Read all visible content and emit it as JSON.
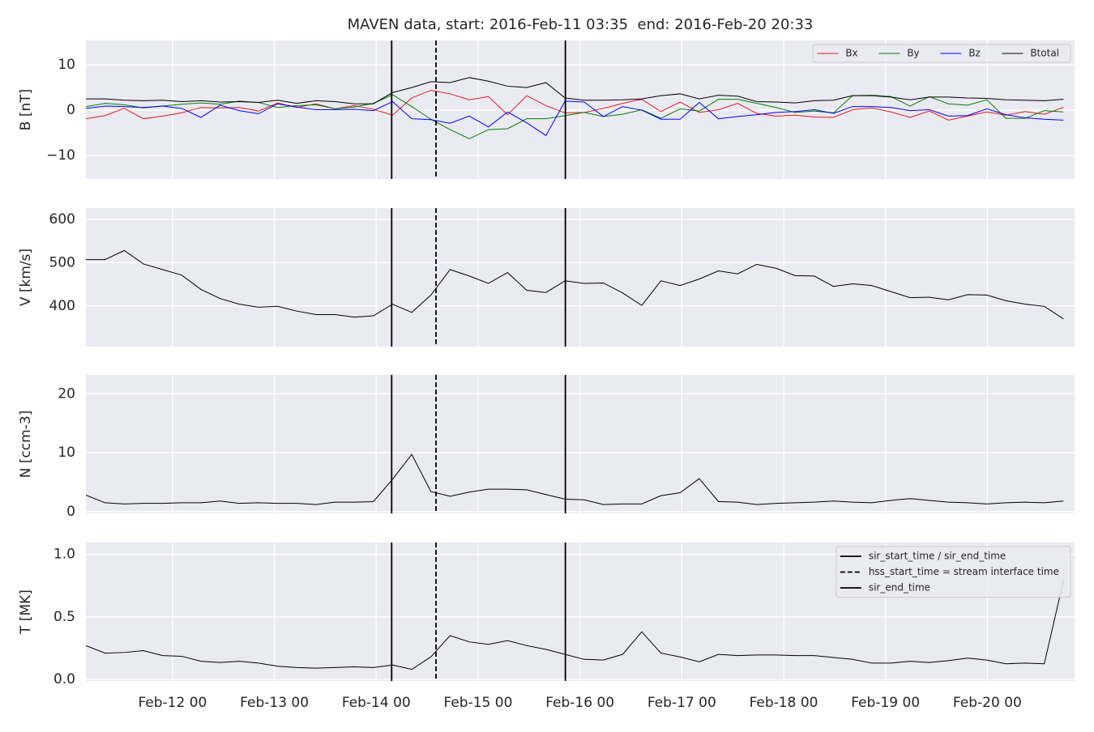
{
  "chart_data": [
    {
      "type": "line",
      "title": "MAVEN data, start: 2016-Feb-11 03:35  end: 2016-Feb-20 20:33",
      "ylabel": "B [nT]",
      "x": [
        "2016-02-11 03:35",
        "2016-02-11 08:06",
        "2016-02-11 12:37",
        "2016-02-11 17:08",
        "2016-02-11 21:39",
        "2016-02-12 02:10",
        "2016-02-12 06:41",
        "2016-02-12 11:12",
        "2016-02-12 15:43",
        "2016-02-12 20:14",
        "2016-02-13 00:45",
        "2016-02-13 05:16",
        "2016-02-13 09:47",
        "2016-02-13 14:18",
        "2016-02-13 18:49",
        "2016-02-13 23:20",
        "2016-02-14 03:51",
        "2016-02-14 08:22",
        "2016-02-14 12:53",
        "2016-02-14 17:24",
        "2016-02-14 21:55",
        "2016-02-15 02:26",
        "2016-02-15 06:57",
        "2016-02-15 11:28",
        "2016-02-15 15:59",
        "2016-02-15 20:30",
        "2016-02-16 01:01",
        "2016-02-16 05:32",
        "2016-02-16 10:03",
        "2016-02-16 14:34",
        "2016-02-16 19:05",
        "2016-02-16 23:36",
        "2016-02-17 04:07",
        "2016-02-17 08:38",
        "2016-02-17 13:09",
        "2016-02-17 17:40",
        "2016-02-17 22:11",
        "2016-02-18 02:42",
        "2016-02-18 07:13",
        "2016-02-18 11:44",
        "2016-02-18 16:15",
        "2016-02-18 20:46",
        "2016-02-19 01:17",
        "2016-02-19 05:48",
        "2016-02-19 10:19",
        "2016-02-19 14:50",
        "2016-02-19 19:21",
        "2016-02-19 23:52",
        "2016-02-20 04:23",
        "2016-02-20 08:54",
        "2016-02-20 13:25",
        "2016-02-20 17:56"
      ],
      "series": [
        {
          "name": "Bx",
          "color": "#e41a1c",
          "values": [
            -1.9,
            -1.2,
            0.4,
            -1.9,
            -1.3,
            -0.6,
            0.6,
            0.5,
            0.6,
            -0.2,
            1.6,
            0.6,
            1.4,
            0.3,
            1.0,
            0.2,
            -1.1,
            2.7,
            4.4,
            3.6,
            2.3,
            3.0,
            -1.0,
            3.2,
            1.0,
            -0.6,
            -0.5,
            0.4,
            1.5,
            2.4,
            -0.3,
            1.8,
            -0.5,
            0.1,
            1.5,
            -0.7,
            -1.3,
            -1.1,
            -1.5,
            -1.6,
            0.1,
            0.5,
            -0.4,
            -1.6,
            -0.2,
            -2.2,
            -1.3,
            -0.4,
            -1.1,
            -0.3,
            -0.9,
            0.6
          ]
        },
        {
          "name": "By",
          "color": "#008000",
          "values": [
            0.8,
            1.5,
            1.2,
            0.5,
            0.9,
            1.3,
            1.6,
            1.3,
            2.0,
            1.7,
            0.6,
            1.0,
            1.2,
            0.3,
            0.7,
            1.5,
            3.4,
            0.8,
            -2.0,
            -4.3,
            -6.3,
            -4.3,
            -4.1,
            -1.9,
            -1.9,
            -1.2,
            -0.5,
            -1.4,
            -0.9,
            0.1,
            -1.8,
            0.3,
            -0.2,
            2.4,
            2.4,
            1.5,
            0.6,
            -0.5,
            -0.2,
            -0.6,
            3.2,
            3.3,
            3.0,
            0.9,
            3.0,
            1.4,
            1.1,
            2.3,
            -1.8,
            -1.8,
            -0.1,
            -0.4
          ]
        },
        {
          "name": "Bz",
          "color": "#0000ff",
          "values": [
            0.4,
            0.9,
            0.8,
            0.6,
            0.9,
            0.4,
            -1.6,
            1.1,
            -0.1,
            -0.8,
            1.4,
            0.7,
            0.1,
            0.1,
            0.2,
            -0.1,
            1.9,
            -1.9,
            -2.1,
            -2.9,
            -1.3,
            -3.7,
            -0.4,
            -2.8,
            -5.6,
            2.0,
            1.8,
            -1.4,
            0.8,
            0.0,
            -2.0,
            -2.0,
            1.7,
            -1.9,
            -1.4,
            -1.0,
            -0.5,
            -0.3,
            0.1,
            -0.7,
            0.8,
            0.8,
            0.6,
            -0.1,
            0.1,
            -1.3,
            -1.2,
            0.3,
            -1.0,
            -1.7,
            -2.0,
            -2.2
          ]
        },
        {
          "name": "Btotal",
          "color": "#000000",
          "values": [
            2.5,
            2.5,
            2.2,
            2.1,
            2.2,
            1.9,
            2.1,
            1.8,
            1.9,
            1.7,
            2.2,
            1.5,
            2.1,
            1.9,
            1.4,
            1.4,
            3.9,
            5.0,
            6.3,
            6.1,
            7.2,
            6.4,
            5.3,
            5.0,
            6.1,
            2.7,
            2.2,
            2.2,
            2.3,
            2.5,
            3.2,
            3.6,
            2.5,
            3.3,
            3.1,
            1.9,
            1.8,
            1.6,
            2.1,
            2.2,
            3.2,
            3.2,
            2.9,
            2.3,
            2.9,
            2.9,
            2.7,
            2.6,
            2.3,
            2.2,
            2.1,
            2.4
          ]
        }
      ],
      "xlim": [
        "2016-02-11 03:35",
        "2016-02-20 20:33"
      ],
      "ylim": [
        -15.2,
        15.4
      ],
      "yticks": [
        {
          "value": -10,
          "label": "−10"
        },
        0,
        10
      ],
      "grid": true,
      "legend": "upper right",
      "legend_columns": 4,
      "vlines": [
        {
          "x": "2016-02-14 03:38",
          "style": "solid"
        },
        {
          "x": "2016-02-14 14:05",
          "style": "dashed"
        },
        {
          "x": "2016-02-15 20:34",
          "style": "solid"
        }
      ]
    },
    {
      "type": "line",
      "ylabel": "V [km/s]",
      "x": [
        "2016-02-11 03:35",
        "2016-02-11 08:06",
        "2016-02-11 12:37",
        "2016-02-11 17:08",
        "2016-02-11 21:39",
        "2016-02-12 02:10",
        "2016-02-12 06:41",
        "2016-02-12 11:12",
        "2016-02-12 15:43",
        "2016-02-12 20:14",
        "2016-02-13 00:45",
        "2016-02-13 05:16",
        "2016-02-13 09:47",
        "2016-02-13 14:18",
        "2016-02-13 18:49",
        "2016-02-13 23:20",
        "2016-02-14 03:51",
        "2016-02-14 08:22",
        "2016-02-14 12:53",
        "2016-02-14 17:24",
        "2016-02-14 21:55",
        "2016-02-15 02:26",
        "2016-02-15 06:57",
        "2016-02-15 11:28",
        "2016-02-15 15:59",
        "2016-02-15 20:30",
        "2016-02-16 01:01",
        "2016-02-16 05:32",
        "2016-02-16 10:03",
        "2016-02-16 14:34",
        "2016-02-16 19:05",
        "2016-02-16 23:36",
        "2016-02-17 04:07",
        "2016-02-17 08:38",
        "2016-02-17 13:09",
        "2016-02-17 17:40",
        "2016-02-17 22:11",
        "2016-02-18 02:42",
        "2016-02-18 07:13",
        "2016-02-18 11:44",
        "2016-02-18 16:15",
        "2016-02-18 20:46",
        "2016-02-19 01:17",
        "2016-02-19 05:48",
        "2016-02-19 10:19",
        "2016-02-19 14:50",
        "2016-02-19 19:21",
        "2016-02-19 23:52",
        "2016-02-20 04:23",
        "2016-02-20 08:54",
        "2016-02-20 13:25",
        "2016-02-20 17:56"
      ],
      "values": [
        507,
        507,
        528,
        497,
        484,
        471,
        438,
        417,
        404,
        397,
        399,
        388,
        380,
        380,
        374,
        377,
        404,
        385,
        425,
        484,
        469,
        452,
        477,
        436,
        431,
        458,
        452,
        453,
        430,
        401,
        458,
        447,
        462,
        481,
        474,
        496,
        487,
        470,
        469,
        445,
        451,
        447,
        433,
        419,
        420,
        414,
        426,
        425,
        412,
        404,
        399,
        370
      ],
      "color": "#000000",
      "xlim": [
        "2016-02-11 03:35",
        "2016-02-20 20:33"
      ],
      "ylim": [
        306,
        626
      ],
      "yticks": [
        400,
        500,
        600
      ],
      "grid": true,
      "vlines": [
        {
          "x": "2016-02-14 03:38",
          "style": "solid"
        },
        {
          "x": "2016-02-14 14:05",
          "style": "dashed"
        },
        {
          "x": "2016-02-15 20:34",
          "style": "solid"
        }
      ]
    },
    {
      "type": "line",
      "ylabel": "N [ccm-3]",
      "x": [
        "2016-02-11 03:35",
        "2016-02-11 08:06",
        "2016-02-11 12:37",
        "2016-02-11 17:08",
        "2016-02-11 21:39",
        "2016-02-12 02:10",
        "2016-02-12 06:41",
        "2016-02-12 11:12",
        "2016-02-12 15:43",
        "2016-02-12 20:14",
        "2016-02-13 00:45",
        "2016-02-13 05:16",
        "2016-02-13 09:47",
        "2016-02-13 14:18",
        "2016-02-13 18:49",
        "2016-02-13 23:20",
        "2016-02-14 03:51",
        "2016-02-14 08:22",
        "2016-02-14 12:53",
        "2016-02-14 17:24",
        "2016-02-14 21:55",
        "2016-02-15 02:26",
        "2016-02-15 06:57",
        "2016-02-15 11:28",
        "2016-02-15 15:59",
        "2016-02-15 20:30",
        "2016-02-16 01:01",
        "2016-02-16 05:32",
        "2016-02-16 10:03",
        "2016-02-16 14:34",
        "2016-02-16 19:05",
        "2016-02-16 23:36",
        "2016-02-17 04:07",
        "2016-02-17 08:38",
        "2016-02-17 13:09",
        "2016-02-17 17:40",
        "2016-02-17 22:11",
        "2016-02-18 02:42",
        "2016-02-18 07:13",
        "2016-02-18 11:44",
        "2016-02-18 16:15",
        "2016-02-18 20:46",
        "2016-02-19 01:17",
        "2016-02-19 05:48",
        "2016-02-19 10:19",
        "2016-02-19 14:50",
        "2016-02-19 19:21",
        "2016-02-19 23:52",
        "2016-02-20 04:23",
        "2016-02-20 08:54",
        "2016-02-20 13:25",
        "2016-02-20 17:56"
      ],
      "values": [
        2.8,
        1.5,
        1.3,
        1.4,
        1.4,
        1.5,
        1.5,
        1.8,
        1.4,
        1.5,
        1.4,
        1.4,
        1.2,
        1.6,
        1.6,
        1.7,
        5.5,
        9.7,
        3.4,
        2.6,
        3.3,
        3.8,
        3.8,
        3.7,
        2.9,
        2.1,
        2.0,
        1.2,
        1.3,
        1.3,
        2.7,
        3.2,
        5.6,
        1.7,
        1.6,
        1.2,
        1.4,
        1.5,
        1.6,
        1.8,
        1.6,
        1.5,
        1.9,
        2.2,
        1.9,
        1.6,
        1.5,
        1.3,
        1.5,
        1.6,
        1.5,
        1.8
      ],
      "color": "#000000",
      "xlim": [
        "2016-02-11 03:35",
        "2016-02-20 20:33"
      ],
      "ylim": [
        -0.3,
        23.2
      ],
      "yticks": [
        0,
        10,
        20
      ],
      "grid": true,
      "vlines": [
        {
          "x": "2016-02-14 03:38",
          "style": "solid"
        },
        {
          "x": "2016-02-14 14:05",
          "style": "dashed"
        },
        {
          "x": "2016-02-15 20:34",
          "style": "solid"
        }
      ]
    },
    {
      "type": "line",
      "ylabel": "T [MK]",
      "x": [
        "2016-02-11 03:35",
        "2016-02-11 08:06",
        "2016-02-11 12:37",
        "2016-02-11 17:08",
        "2016-02-11 21:39",
        "2016-02-12 02:10",
        "2016-02-12 06:41",
        "2016-02-12 11:12",
        "2016-02-12 15:43",
        "2016-02-12 20:14",
        "2016-02-13 00:45",
        "2016-02-13 05:16",
        "2016-02-13 09:47",
        "2016-02-13 14:18",
        "2016-02-13 18:49",
        "2016-02-13 23:20",
        "2016-02-14 03:51",
        "2016-02-14 08:22",
        "2016-02-14 12:53",
        "2016-02-14 17:24",
        "2016-02-14 21:55",
        "2016-02-15 02:26",
        "2016-02-15 06:57",
        "2016-02-15 11:28",
        "2016-02-15 15:59",
        "2016-02-15 20:30",
        "2016-02-16 01:01",
        "2016-02-16 05:32",
        "2016-02-16 10:03",
        "2016-02-16 14:34",
        "2016-02-16 19:05",
        "2016-02-16 23:36",
        "2016-02-17 04:07",
        "2016-02-17 08:38",
        "2016-02-17 13:09",
        "2016-02-17 17:40",
        "2016-02-17 22:11",
        "2016-02-18 02:42",
        "2016-02-18 07:13",
        "2016-02-18 11:44",
        "2016-02-18 16:15",
        "2016-02-18 20:46",
        "2016-02-19 01:17",
        "2016-02-19 05:48",
        "2016-02-19 10:19",
        "2016-02-19 14:50",
        "2016-02-19 19:21",
        "2016-02-19 23:52",
        "2016-02-20 04:23",
        "2016-02-20 08:54",
        "2016-02-20 13:25",
        "2016-02-20 17:56"
      ],
      "values": [
        0.27,
        0.21,
        0.215,
        0.23,
        0.19,
        0.185,
        0.145,
        0.135,
        0.145,
        0.13,
        0.105,
        0.095,
        0.09,
        0.095,
        0.1,
        0.095,
        0.115,
        0.08,
        0.18,
        0.35,
        0.3,
        0.28,
        0.31,
        0.27,
        0.24,
        0.2,
        0.16,
        0.155,
        0.2,
        0.38,
        0.21,
        0.18,
        0.14,
        0.2,
        0.19,
        0.195,
        0.195,
        0.19,
        0.19,
        0.175,
        0.16,
        0.13,
        0.13,
        0.145,
        0.135,
        0.15,
        0.17,
        0.155,
        0.125,
        0.13,
        0.125,
        0.79
      ],
      "color": "#000000",
      "xlim": [
        "2016-02-11 03:35",
        "2016-02-20 20:33"
      ],
      "xticks": [
        {
          "value": "2016-02-12 00:00",
          "label": "Feb-12 00"
        },
        {
          "value": "2016-02-13 00:00",
          "label": "Feb-13 00"
        },
        {
          "value": "2016-02-14 00:00",
          "label": "Feb-14 00"
        },
        {
          "value": "2016-02-15 00:00",
          "label": "Feb-15 00"
        },
        {
          "value": "2016-02-16 00:00",
          "label": "Feb-16 00"
        },
        {
          "value": "2016-02-17 00:00",
          "label": "Feb-17 00"
        },
        {
          "value": "2016-02-18 00:00",
          "label": "Feb-18 00"
        },
        {
          "value": "2016-02-19 00:00",
          "label": "Feb-19 00"
        },
        {
          "value": "2016-02-20 00:00",
          "label": "Feb-20 00"
        }
      ],
      "ylim": [
        -0.013,
        1.095
      ],
      "yticks": [
        {
          "value": 0,
          "label": "0.0"
        },
        0.5,
        {
          "value": 1,
          "label": "1.0"
        }
      ],
      "grid": true,
      "legend": "upper right",
      "vlines": [
        {
          "name": "sir_start_time / sir_end_time",
          "x": "2016-02-14 03:38",
          "style": "solid"
        },
        {
          "name": "hss_start_time = stream interface time",
          "x": "2016-02-14 14:05",
          "style": "dashed"
        },
        {
          "name": "sir_end_time",
          "x": "2016-02-15 20:34",
          "style": "solid"
        }
      ]
    }
  ]
}
